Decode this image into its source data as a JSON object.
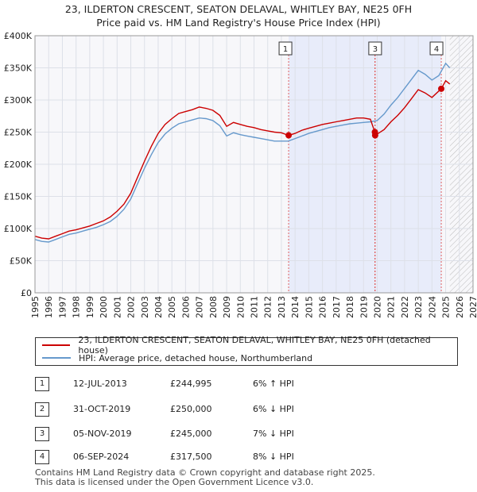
{
  "header": {
    "title": "23, ILDERTON CRESCENT, SEATON DELAVAL, WHITLEY BAY, NE25 0FH",
    "subtitle": "Price paid vs. HM Land Registry's House Price Index (HPI)"
  },
  "chart_data": {
    "type": "line",
    "title": "23, ILDERTON CRESCENT, SEATON DELAVAL, WHITLEY BAY, NE25 0FH",
    "subtitle": "Price paid vs. HM Land Registry's House Price Index (HPI)",
    "xlabel": "",
    "ylabel": "",
    "xlim": [
      1995,
      2027
    ],
    "ylim": [
      0,
      400000
    ],
    "y_ticks": [
      0,
      50000,
      100000,
      150000,
      200000,
      250000,
      300000,
      350000,
      400000
    ],
    "y_tick_labels": [
      "£0",
      "£50K",
      "£100K",
      "£150K",
      "£200K",
      "£250K",
      "£300K",
      "£350K",
      "£400K"
    ],
    "x_ticks": [
      1995,
      1996,
      1997,
      1998,
      1999,
      2000,
      2001,
      2002,
      2003,
      2004,
      2005,
      2006,
      2007,
      2008,
      2009,
      2010,
      2011,
      2012,
      2013,
      2014,
      2015,
      2016,
      2017,
      2018,
      2019,
      2020,
      2021,
      2022,
      2023,
      2024,
      2025,
      2026,
      2027
    ],
    "x_tick_labels": [
      "1995",
      "1996",
      "1997",
      "1998",
      "1999",
      "2000",
      "2001",
      "2002",
      "2003",
      "2004",
      "2005",
      "2006",
      "2007",
      "2008",
      "2009",
      "2010",
      "2011",
      "2012",
      "2013",
      "2014",
      "2015",
      "2016",
      "2017",
      "2018",
      "2019",
      "2020",
      "2021",
      "2022",
      "2023",
      "2024",
      "2025",
      "2026",
      "2027"
    ],
    "grid": true,
    "legend_position": "bottom",
    "shaded_span": [
      2013.53,
      2024.68
    ],
    "future_hatch_from": 2025.3,
    "series": [
      {
        "name": "23, ILDERTON CRESCENT, SEATON DELAVAL, WHITLEY BAY, NE25 0FH (detached house)",
        "color": "#cc0000",
        "x": [
          1995.0,
          1995.5,
          1996.0,
          1996.5,
          1997.0,
          1997.5,
          1998.0,
          1998.5,
          1999.0,
          1999.5,
          2000.0,
          2000.5,
          2001.0,
          2001.5,
          2002.0,
          2002.5,
          2003.0,
          2003.5,
          2004.0,
          2004.5,
          2005.0,
          2005.5,
          2006.0,
          2006.5,
          2007.0,
          2007.5,
          2008.0,
          2008.5,
          2009.0,
          2009.5,
          2010.0,
          2010.5,
          2011.0,
          2011.5,
          2012.0,
          2012.5,
          2013.0,
          2013.53,
          2014.0,
          2014.5,
          2015.0,
          2015.5,
          2016.0,
          2016.5,
          2017.0,
          2017.5,
          2018.0,
          2018.5,
          2019.0,
          2019.5,
          2019.83,
          2019.85,
          2020.0,
          2020.5,
          2021.0,
          2021.5,
          2022.0,
          2022.5,
          2023.0,
          2023.5,
          2024.0,
          2024.68,
          2025.0,
          2025.3
        ],
        "values": [
          88000,
          85000,
          84000,
          88000,
          92000,
          96000,
          98000,
          101000,
          104000,
          108000,
          112000,
          118000,
          127000,
          138000,
          155000,
          180000,
          205000,
          228000,
          248000,
          262000,
          271000,
          279000,
          282000,
          285000,
          289000,
          287000,
          284000,
          276000,
          259000,
          265000,
          262000,
          259000,
          257000,
          254000,
          252000,
          250000,
          249000,
          244995,
          248000,
          253000,
          256000,
          259000,
          262000,
          264000,
          266000,
          268000,
          270000,
          272000,
          272000,
          270000,
          250000,
          245000,
          247000,
          254000,
          266000,
          276000,
          288000,
          302000,
          316000,
          311000,
          304000,
          317500,
          330000,
          325000
        ]
      },
      {
        "name": "HPI: Average price, detached house, Northumberland",
        "color": "#6699cc",
        "x": [
          1995.0,
          1995.5,
          1996.0,
          1996.5,
          1997.0,
          1997.5,
          1998.0,
          1998.5,
          1999.0,
          1999.5,
          2000.0,
          2000.5,
          2001.0,
          2001.5,
          2002.0,
          2002.5,
          2003.0,
          2003.5,
          2004.0,
          2004.5,
          2005.0,
          2005.5,
          2006.0,
          2006.5,
          2007.0,
          2007.5,
          2008.0,
          2008.5,
          2009.0,
          2009.5,
          2010.0,
          2010.5,
          2011.0,
          2011.5,
          2012.0,
          2012.5,
          2013.0,
          2013.5,
          2014.0,
          2014.5,
          2015.0,
          2015.5,
          2016.0,
          2016.5,
          2017.0,
          2017.5,
          2018.0,
          2018.5,
          2019.0,
          2019.5,
          2020.0,
          2020.5,
          2021.0,
          2021.5,
          2022.0,
          2022.5,
          2023.0,
          2023.5,
          2024.0,
          2024.5,
          2025.0,
          2025.3
        ],
        "values": [
          83000,
          80000,
          79000,
          83000,
          87000,
          91000,
          93000,
          96000,
          99000,
          102000,
          106000,
          111000,
          119000,
          130000,
          146000,
          170000,
          194000,
          215000,
          234000,
          247000,
          256000,
          263000,
          266000,
          269000,
          272000,
          271000,
          268000,
          260000,
          244000,
          249000,
          246000,
          244000,
          242000,
          240000,
          238000,
          236000,
          236000,
          236000,
          240000,
          244000,
          248000,
          251000,
          254000,
          257000,
          259000,
          261000,
          263000,
          264000,
          265000,
          266000,
          268000,
          278000,
          292000,
          304000,
          318000,
          332000,
          346000,
          340000,
          331000,
          338000,
          357000,
          350000
        ]
      }
    ],
    "markers": [
      {
        "label": "1",
        "x": 2013.53,
        "y": 244995
      },
      {
        "label": "2",
        "x": 2019.83,
        "y": 250000
      },
      {
        "label": "3",
        "x": 2019.85,
        "y": 245000
      },
      {
        "label": "4",
        "x": 2024.68,
        "y": 317500
      }
    ]
  },
  "legend": {
    "items": [
      {
        "label": "23, ILDERTON CRESCENT, SEATON DELAVAL, WHITLEY BAY, NE25 0FH (detached house)",
        "color": "#cc0000"
      },
      {
        "label": "HPI: Average price, detached house, Northumberland",
        "color": "#6699cc"
      }
    ]
  },
  "transactions": [
    {
      "num": "1",
      "date": "12-JUL-2013",
      "price": "£244,995",
      "hpi": "6% ↑ HPI"
    },
    {
      "num": "2",
      "date": "31-OCT-2019",
      "price": "£250,000",
      "hpi": "6% ↓ HPI"
    },
    {
      "num": "3",
      "date": "05-NOV-2019",
      "price": "£245,000",
      "hpi": "7% ↓ HPI"
    },
    {
      "num": "4",
      "date": "06-SEP-2024",
      "price": "£317,500",
      "hpi": "8% ↓ HPI"
    }
  ],
  "footer": {
    "line1": "Contains HM Land Registry data © Crown copyright and database right 2025.",
    "line2": "This data is licensed under the Open Government Licence v3.0."
  }
}
